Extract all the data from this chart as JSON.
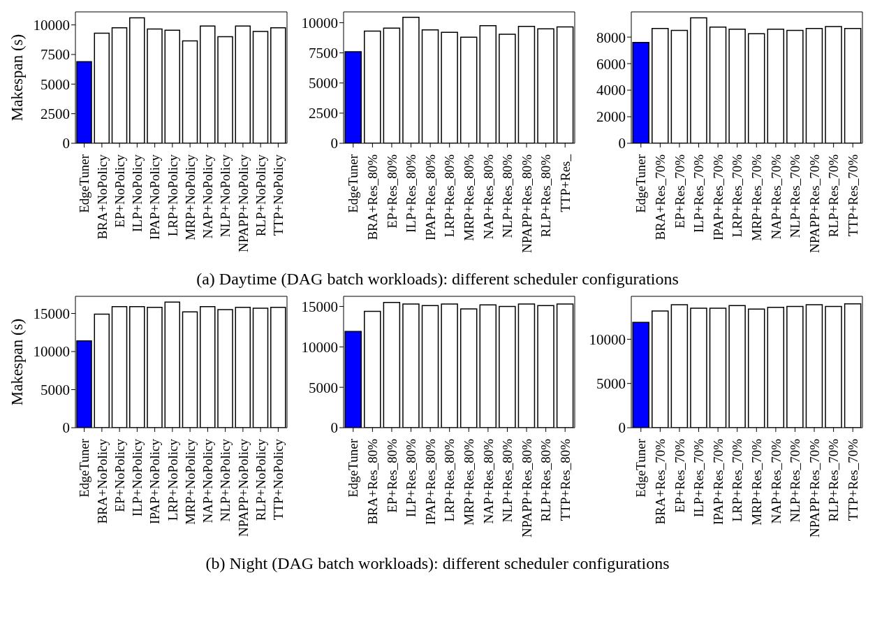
{
  "chart_data": [
    {
      "type": "bar",
      "ylabel": "Makespan (s)",
      "categories": [
        "EdgeTuner",
        "BRA+NoPolicy",
        "EP+NoPolicy",
        "ILP+NoPolicy",
        "IPAP+NoPolicy",
        "LRP+NoPolicy",
        "MRP+NoPolicy",
        "NAP+NoPolicy",
        "NLP+NoPolicy",
        "NPAPP+NoPolicy",
        "RLP+NoPolicy",
        "TTP+NoPolicy"
      ],
      "values": [
        6900,
        9300,
        9750,
        10600,
        9650,
        9550,
        8650,
        9900,
        9000,
        9900,
        9450,
        9750
      ],
      "colors": [
        "#0000ff",
        "#ffffff",
        "#ffffff",
        "#ffffff",
        "#ffffff",
        "#ffffff",
        "#ffffff",
        "#ffffff",
        "#ffffff",
        "#ffffff",
        "#ffffff",
        "#ffffff"
      ],
      "ylim": [
        0,
        11100
      ],
      "yticks": [
        0,
        2500,
        5000,
        7500,
        10000
      ],
      "annotations": [
        "(a) Daytime (DAG batch workloads): different scheduler configurations"
      ]
    },
    {
      "type": "bar",
      "categories": [
        "EdgeTuner",
        "BRA+Res_80%",
        "EP+Res_80%",
        "ILP+Res_80%",
        "IPAP+Res_80%",
        "LRP+Res_80%",
        "MRP+Res_80%",
        "NAP+Res_80%",
        "NLP+Res_80%",
        "NPAPP+Res_80%",
        "RLP+Res_80%",
        "TTP+Res_"
      ],
      "values": [
        7600,
        9300,
        9550,
        10450,
        9400,
        9200,
        8800,
        9750,
        9050,
        9700,
        9500,
        9650
      ],
      "colors": [
        "#0000ff",
        "#ffffff",
        "#ffffff",
        "#ffffff",
        "#ffffff",
        "#ffffff",
        "#ffffff",
        "#ffffff",
        "#ffffff",
        "#ffffff",
        "#ffffff",
        "#ffffff"
      ],
      "ylim": [
        0,
        10900
      ],
      "yticks": [
        0,
        2500,
        5000,
        7500,
        10000
      ]
    },
    {
      "type": "bar",
      "categories": [
        "EdgeTuner",
        "BRA+Res_70%",
        "EP+Res_70%",
        "ILP+Res_70%",
        "IPAP+Res_70%",
        "LRP+Res_70%",
        "MRP+Res_70%",
        "NAP+Res_70%",
        "NLP+Res_70%",
        "NPAPP+Res_70%",
        "RLP+Res_70%",
        "TTP+Res_70%"
      ],
      "values": [
        7600,
        8650,
        8500,
        9450,
        8750,
        8600,
        8250,
        8600,
        8500,
        8650,
        8800,
        8650
      ],
      "colors": [
        "#0000ff",
        "#ffffff",
        "#ffffff",
        "#ffffff",
        "#ffffff",
        "#ffffff",
        "#ffffff",
        "#ffffff",
        "#ffffff",
        "#ffffff",
        "#ffffff",
        "#ffffff"
      ],
      "ylim": [
        0,
        9900
      ],
      "yticks": [
        0,
        2000,
        4000,
        6000,
        8000
      ]
    },
    {
      "type": "bar",
      "ylabel": "Makespan (s)",
      "categories": [
        "EdgeTuner",
        "BRA+NoPolicy",
        "EP+NoPolicy",
        "ILP+NoPolicy",
        "IPAP+NoPolicy",
        "LRP+NoPolicy",
        "MRP+NoPolicy",
        "NAP+NoPolicy",
        "NLP+NoPolicy",
        "NPAPP+NoPolicy",
        "RLP+NoPolicy",
        "TTP+NoPolicy"
      ],
      "values": [
        11400,
        14900,
        15900,
        15900,
        15800,
        16500,
        15200,
        15900,
        15500,
        15800,
        15700,
        15800
      ],
      "colors": [
        "#0000ff",
        "#ffffff",
        "#ffffff",
        "#ffffff",
        "#ffffff",
        "#ffffff",
        "#ffffff",
        "#ffffff",
        "#ffffff",
        "#ffffff",
        "#ffffff",
        "#ffffff"
      ],
      "ylim": [
        0,
        17250
      ],
      "yticks": [
        0,
        5000,
        10000,
        15000
      ],
      "annotations": [
        "(b) Night (DAG batch workloads): different scheduler configurations"
      ]
    },
    {
      "type": "bar",
      "categories": [
        "EdgeTuner",
        "BRA+Res_80%",
        "EP+Res_80%",
        "ILP+Res_80%",
        "IPAP+Res_80%",
        "LRP+Res_80%",
        "MRP+Res_80%",
        "NAP+Res_80%",
        "NLP+Res_80%",
        "NPAPP+Res_80%",
        "RLP+Res_80%",
        "TTP+Res_80%"
      ],
      "values": [
        11900,
        14400,
        15500,
        15300,
        15100,
        15300,
        14700,
        15200,
        15000,
        15300,
        15100,
        15300
      ],
      "colors": [
        "#0000ff",
        "#ffffff",
        "#ffffff",
        "#ffffff",
        "#ffffff",
        "#ffffff",
        "#ffffff",
        "#ffffff",
        "#ffffff",
        "#ffffff",
        "#ffffff",
        "#ffffff"
      ],
      "ylim": [
        0,
        16250
      ],
      "yticks": [
        0,
        5000,
        10000,
        15000
      ]
    },
    {
      "type": "bar",
      "categories": [
        "EdgeTuner",
        "BRA+Res_70%",
        "EP+Res_70%",
        "ILP+Res_70%",
        "IPAP+Res_70%",
        "LRP+Res_70%",
        "MRP+Res_70%",
        "NAP+Res_70%",
        "NLP+Res_70%",
        "NPAPP+Res_70%",
        "RLP+Res_70%",
        "TTP+Res_70%"
      ],
      "values": [
        11900,
        13200,
        13900,
        13500,
        13500,
        13800,
        13400,
        13600,
        13700,
        13900,
        13700,
        14000
      ],
      "colors": [
        "#0000ff",
        "#ffffff",
        "#ffffff",
        "#ffffff",
        "#ffffff",
        "#ffffff",
        "#ffffff",
        "#ffffff",
        "#ffffff",
        "#ffffff",
        "#ffffff",
        "#ffffff"
      ],
      "ylim": [
        0,
        14850
      ],
      "yticks": [
        0,
        5000,
        10000
      ]
    }
  ]
}
